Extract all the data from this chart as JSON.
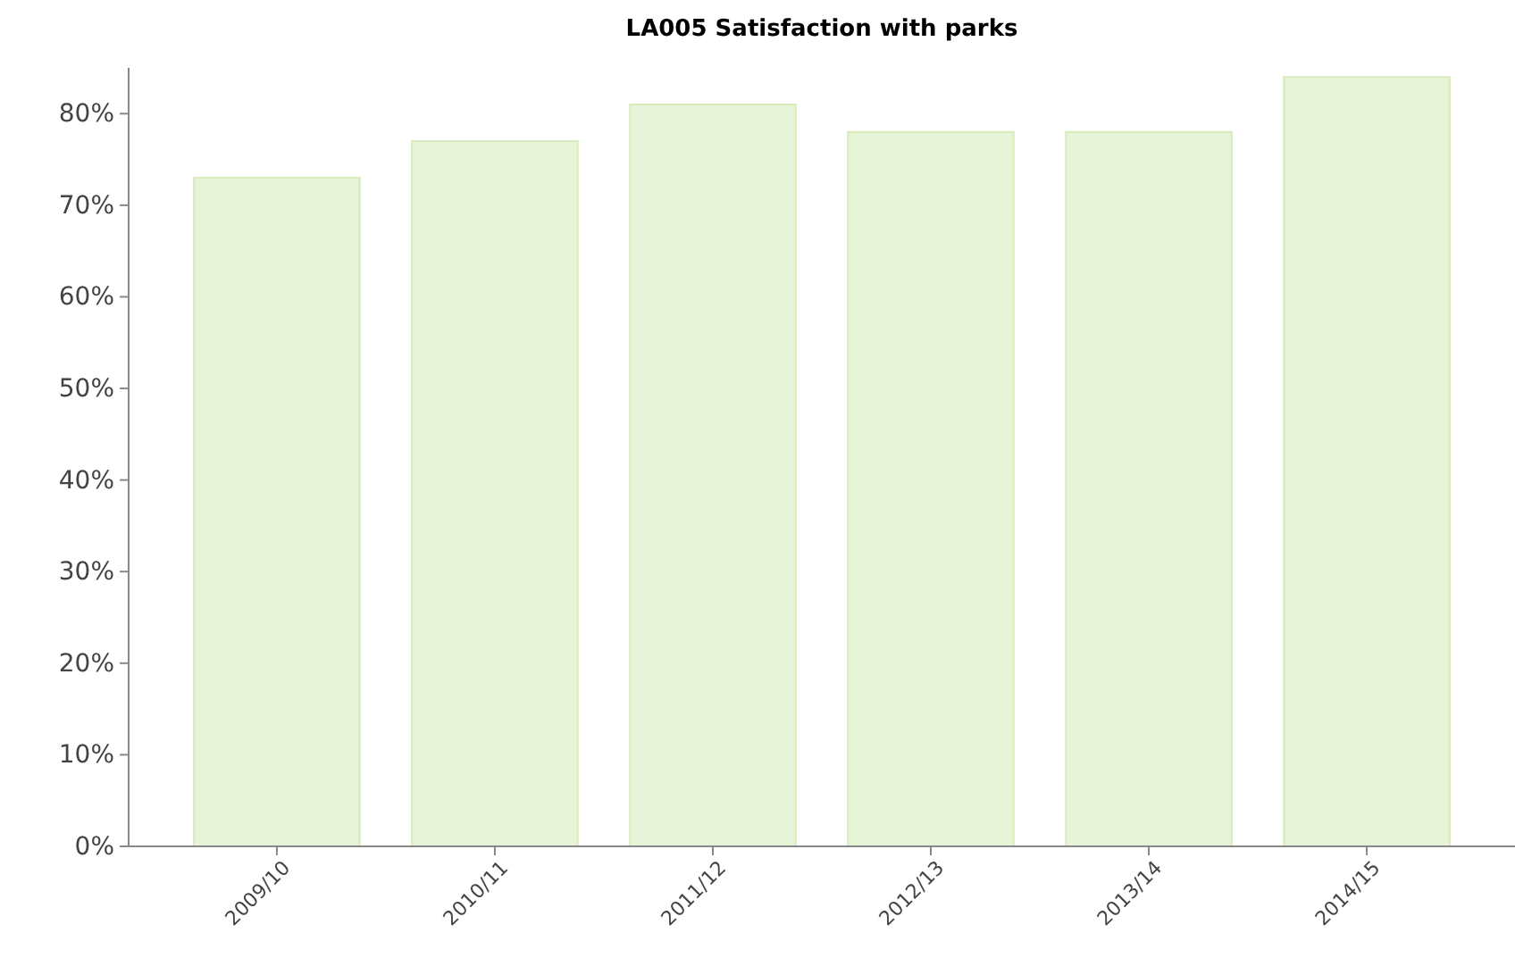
{
  "chart_data": {
    "type": "bar",
    "title": "LA005 Satisfaction with parks",
    "categories": [
      "2009/10",
      "2010/11",
      "2011/12",
      "2012/13",
      "2013/14",
      "2014/15"
    ],
    "values": [
      73,
      77,
      81,
      78,
      78,
      84
    ],
    "color": "#e8f4d8",
    "ylim": [
      0,
      85
    ],
    "yticks": [
      {
        "value": 0,
        "label": "0%"
      },
      {
        "value": 10,
        "label": "10%"
      },
      {
        "value": 20,
        "label": "20%"
      },
      {
        "value": 30,
        "label": "30%"
      },
      {
        "value": 40,
        "label": "40%"
      },
      {
        "value": 50,
        "label": "50%"
      },
      {
        "value": 60,
        "label": "60%"
      },
      {
        "value": 70,
        "label": "70%"
      },
      {
        "value": 80,
        "label": "80%"
      }
    ],
    "grid": false
  }
}
